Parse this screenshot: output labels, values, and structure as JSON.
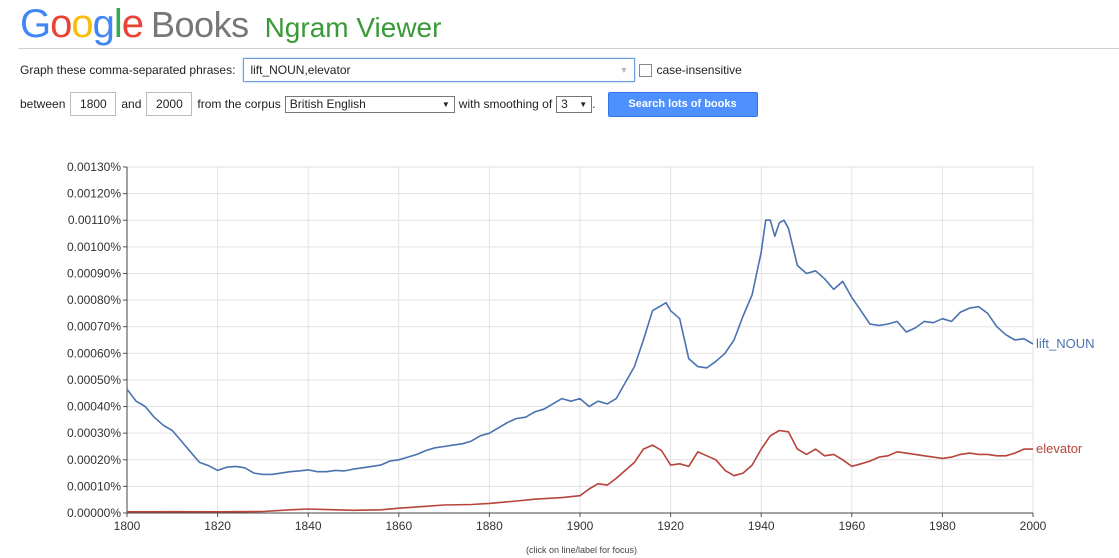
{
  "header": {
    "logo_letters": [
      {
        "ch": "G",
        "color": "#4285f4"
      },
      {
        "ch": "o",
        "color": "#ea4335"
      },
      {
        "ch": "o",
        "color": "#fbbc05"
      },
      {
        "ch": "g",
        "color": "#4285f4"
      },
      {
        "ch": "l",
        "color": "#34a853"
      },
      {
        "ch": "e",
        "color": "#ea4335"
      }
    ],
    "books": "Books",
    "title": "Ngram Viewer"
  },
  "form": {
    "phrases_label": "Graph these comma-separated phrases:",
    "phrases_value": "lift_NOUN,elevator",
    "case_label": "case-insensitive",
    "between_label": "between",
    "start_year": "1800",
    "and_label": "and",
    "end_year": "2000",
    "corpus_label": "from the corpus",
    "corpus_value": "British English",
    "smoothing_label": "with smoothing of",
    "smoothing_value": "3",
    "smoothing_suffix": ".",
    "search_button": "Search lots of books"
  },
  "footnote": "(click on line/label for focus)",
  "chart_data": {
    "type": "line",
    "xlim": [
      1800,
      2000
    ],
    "ylim": [
      0,
      0.0013
    ],
    "x_ticks": [
      1800,
      1820,
      1840,
      1860,
      1880,
      1900,
      1920,
      1940,
      1960,
      1980,
      2000
    ],
    "y_ticks": [
      "0.00000%",
      "0.00010%",
      "0.00020%",
      "0.00030%",
      "0.00040%",
      "0.00050%",
      "0.00060%",
      "0.00070%",
      "0.00080%",
      "0.00090%",
      "0.00100%",
      "0.00110%",
      "0.00120%",
      "0.00130%"
    ],
    "grid": true,
    "series": [
      {
        "name": "lift_NOUN",
        "color": "#4a72b0",
        "points": [
          [
            1800,
            0.000465
          ],
          [
            1802,
            0.00042
          ],
          [
            1804,
            0.0004
          ],
          [
            1806,
            0.00036
          ],
          [
            1808,
            0.00033
          ],
          [
            1810,
            0.00031
          ],
          [
            1812,
            0.00027
          ],
          [
            1814,
            0.00023
          ],
          [
            1816,
            0.00019
          ],
          [
            1818,
            0.000178
          ],
          [
            1820,
            0.00016
          ],
          [
            1822,
            0.000172
          ],
          [
            1824,
            0.000175
          ],
          [
            1826,
            0.00017
          ],
          [
            1828,
            0.00015
          ],
          [
            1830,
            0.000145
          ],
          [
            1832,
            0.000145
          ],
          [
            1834,
            0.00015
          ],
          [
            1836,
            0.000155
          ],
          [
            1838,
            0.000158
          ],
          [
            1840,
            0.000162
          ],
          [
            1842,
            0.000155
          ],
          [
            1844,
            0.000155
          ],
          [
            1846,
            0.00016
          ],
          [
            1848,
            0.000158
          ],
          [
            1850,
            0.000165
          ],
          [
            1852,
            0.00017
          ],
          [
            1854,
            0.000175
          ],
          [
            1856,
            0.00018
          ],
          [
            1858,
            0.000195
          ],
          [
            1860,
            0.0002
          ],
          [
            1862,
            0.00021
          ],
          [
            1864,
            0.00022
          ],
          [
            1866,
            0.000235
          ],
          [
            1868,
            0.000245
          ],
          [
            1870,
            0.00025
          ],
          [
            1872,
            0.000255
          ],
          [
            1874,
            0.00026
          ],
          [
            1876,
            0.00027
          ],
          [
            1878,
            0.00029
          ],
          [
            1880,
            0.0003
          ],
          [
            1882,
            0.00032
          ],
          [
            1884,
            0.00034
          ],
          [
            1886,
            0.000355
          ],
          [
            1888,
            0.00036
          ],
          [
            1890,
            0.00038
          ],
          [
            1892,
            0.00039
          ],
          [
            1894,
            0.00041
          ],
          [
            1896,
            0.00043
          ],
          [
            1898,
            0.00042
          ],
          [
            1900,
            0.00043
          ],
          [
            1902,
            0.0004
          ],
          [
            1904,
            0.00042
          ],
          [
            1906,
            0.00041
          ],
          [
            1908,
            0.00043
          ],
          [
            1910,
            0.00049
          ],
          [
            1912,
            0.00055
          ],
          [
            1914,
            0.00065
          ],
          [
            1916,
            0.00076
          ],
          [
            1918,
            0.00078
          ],
          [
            1919,
            0.00079
          ],
          [
            1920,
            0.00076
          ],
          [
            1922,
            0.00073
          ],
          [
            1924,
            0.00058
          ],
          [
            1926,
            0.00055
          ],
          [
            1928,
            0.000545
          ],
          [
            1930,
            0.00057
          ],
          [
            1932,
            0.0006
          ],
          [
            1934,
            0.00065
          ],
          [
            1936,
            0.00074
          ],
          [
            1938,
            0.00082
          ],
          [
            1940,
            0.00098
          ],
          [
            1941,
            0.0011
          ],
          [
            1942,
            0.0011
          ],
          [
            1943,
            0.00104
          ],
          [
            1944,
            0.00109
          ],
          [
            1945,
            0.0011
          ],
          [
            1946,
            0.00107
          ],
          [
            1948,
            0.00093
          ],
          [
            1950,
            0.0009
          ],
          [
            1952,
            0.00091
          ],
          [
            1954,
            0.00088
          ],
          [
            1956,
            0.00084
          ],
          [
            1958,
            0.00087
          ],
          [
            1960,
            0.00081
          ],
          [
            1962,
            0.00076
          ],
          [
            1964,
            0.00071
          ],
          [
            1966,
            0.000705
          ],
          [
            1968,
            0.00071
          ],
          [
            1970,
            0.00072
          ],
          [
            1972,
            0.00068
          ],
          [
            1974,
            0.000695
          ],
          [
            1976,
            0.00072
          ],
          [
            1978,
            0.000715
          ],
          [
            1980,
            0.00073
          ],
          [
            1982,
            0.00072
          ],
          [
            1984,
            0.000755
          ],
          [
            1986,
            0.00077
          ],
          [
            1988,
            0.000775
          ],
          [
            1990,
            0.00075
          ],
          [
            1992,
            0.0007
          ],
          [
            1994,
            0.00067
          ],
          [
            1996,
            0.00065
          ],
          [
            1998,
            0.000655
          ],
          [
            2000,
            0.000635
          ]
        ]
      },
      {
        "name": "elevator",
        "color": "#b5443b",
        "points": [
          [
            1800,
            4.5e-06
          ],
          [
            1810,
            5e-06
          ],
          [
            1820,
            4.5e-06
          ],
          [
            1830,
            5.5e-06
          ],
          [
            1836,
            1.2e-05
          ],
          [
            1840,
            1.5e-05
          ],
          [
            1846,
            1.2e-05
          ],
          [
            1850,
            1e-05
          ],
          [
            1856,
            1.2e-05
          ],
          [
            1860,
            1.8e-05
          ],
          [
            1866,
            2.5e-05
          ],
          [
            1870,
            3e-05
          ],
          [
            1876,
            3.2e-05
          ],
          [
            1880,
            3.6e-05
          ],
          [
            1886,
            4.5e-05
          ],
          [
            1890,
            5.2e-05
          ],
          [
            1896,
            5.8e-05
          ],
          [
            1900,
            6.5e-05
          ],
          [
            1902,
            9e-05
          ],
          [
            1904,
            0.00011
          ],
          [
            1906,
            0.000105
          ],
          [
            1908,
            0.00013
          ],
          [
            1910,
            0.00016
          ],
          [
            1912,
            0.00019
          ],
          [
            1914,
            0.00024
          ],
          [
            1916,
            0.000255
          ],
          [
            1918,
            0.000235
          ],
          [
            1920,
            0.00018
          ],
          [
            1922,
            0.000185
          ],
          [
            1924,
            0.000175
          ],
          [
            1926,
            0.00023
          ],
          [
            1928,
            0.000215
          ],
          [
            1930,
            0.0002
          ],
          [
            1932,
            0.00016
          ],
          [
            1934,
            0.00014
          ],
          [
            1936,
            0.00015
          ],
          [
            1938,
            0.00018
          ],
          [
            1940,
            0.00024
          ],
          [
            1942,
            0.00029
          ],
          [
            1944,
            0.00031
          ],
          [
            1946,
            0.000305
          ],
          [
            1948,
            0.00024
          ],
          [
            1950,
            0.00022
          ],
          [
            1952,
            0.00024
          ],
          [
            1954,
            0.000215
          ],
          [
            1956,
            0.00022
          ],
          [
            1958,
            0.0002
          ],
          [
            1960,
            0.000175
          ],
          [
            1962,
            0.000185
          ],
          [
            1964,
            0.000195
          ],
          [
            1966,
            0.00021
          ],
          [
            1968,
            0.000215
          ],
          [
            1970,
            0.00023
          ],
          [
            1972,
            0.000225
          ],
          [
            1974,
            0.00022
          ],
          [
            1976,
            0.000215
          ],
          [
            1978,
            0.00021
          ],
          [
            1980,
            0.000205
          ],
          [
            1982,
            0.00021
          ],
          [
            1984,
            0.00022
          ],
          [
            1986,
            0.000225
          ],
          [
            1988,
            0.00022
          ],
          [
            1990,
            0.00022
          ],
          [
            1992,
            0.000215
          ],
          [
            1994,
            0.000215
          ],
          [
            1996,
            0.000225
          ],
          [
            1998,
            0.00024
          ],
          [
            2000,
            0.00024
          ]
        ]
      }
    ]
  }
}
